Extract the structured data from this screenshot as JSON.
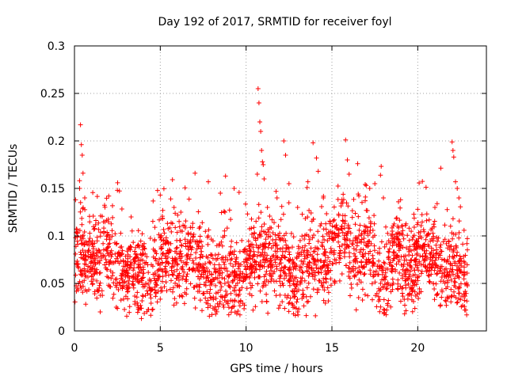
{
  "chart_data": {
    "type": "scatter",
    "title": "Day 192 of 2017, SRMTID for receiver foyl",
    "xlabel": "GPS time / hours",
    "ylabel": "SRMTID / TECUs",
    "xlim": [
      0,
      24
    ],
    "ylim": [
      0,
      0.3
    ],
    "xticks": [
      0,
      5,
      10,
      15,
      20
    ],
    "xtick_labels": [
      "0",
      "5",
      "10",
      "15",
      "20"
    ],
    "yticks": [
      0,
      0.05,
      0.1,
      0.15,
      0.2,
      0.25,
      0.3
    ],
    "ytick_labels": [
      "0",
      "0.05",
      "0.1",
      "0.15",
      "0.2",
      "0.25",
      "0.3"
    ],
    "grid": true,
    "marker": "+",
    "color": "#ff0000",
    "series": [
      {
        "name": "SRMTID",
        "x_start": 0.0,
        "x_end": 22.9,
        "n_points": 2400,
        "baseline_mean": 0.068,
        "baseline_spread": 0.022,
        "highlights": [
          {
            "x": 0.35,
            "y": 0.217
          },
          {
            "x": 0.4,
            "y": 0.196
          },
          {
            "x": 0.45,
            "y": 0.185
          },
          {
            "x": 0.5,
            "y": 0.166
          },
          {
            "x": 0.3,
            "y": 0.15
          },
          {
            "x": 0.6,
            "y": 0.14
          },
          {
            "x": 2.0,
            "y": 0.142
          },
          {
            "x": 2.5,
            "y": 0.148
          },
          {
            "x": 3.3,
            "y": 0.12
          },
          {
            "x": 5.0,
            "y": 0.143
          },
          {
            "x": 5.8,
            "y": 0.13
          },
          {
            "x": 6.2,
            "y": 0.125
          },
          {
            "x": 7.8,
            "y": 0.157
          },
          {
            "x": 8.5,
            "y": 0.145
          },
          {
            "x": 8.8,
            "y": 0.163
          },
          {
            "x": 9.3,
            "y": 0.15
          },
          {
            "x": 10.7,
            "y": 0.255
          },
          {
            "x": 10.75,
            "y": 0.24
          },
          {
            "x": 10.8,
            "y": 0.22
          },
          {
            "x": 10.85,
            "y": 0.21
          },
          {
            "x": 10.9,
            "y": 0.19
          },
          {
            "x": 10.95,
            "y": 0.178
          },
          {
            "x": 11.0,
            "y": 0.175
          },
          {
            "x": 10.65,
            "y": 0.165
          },
          {
            "x": 11.05,
            "y": 0.16
          },
          {
            "x": 11.8,
            "y": 0.14
          },
          {
            "x": 12.2,
            "y": 0.2
          },
          {
            "x": 12.3,
            "y": 0.185
          },
          {
            "x": 12.5,
            "y": 0.155
          },
          {
            "x": 13.0,
            "y": 0.13
          },
          {
            "x": 13.6,
            "y": 0.157
          },
          {
            "x": 13.9,
            "y": 0.198
          },
          {
            "x": 14.1,
            "y": 0.182
          },
          {
            "x": 14.2,
            "y": 0.168
          },
          {
            "x": 14.5,
            "y": 0.14
          },
          {
            "x": 15.8,
            "y": 0.201
          },
          {
            "x": 15.9,
            "y": 0.18
          },
          {
            "x": 16.0,
            "y": 0.165
          },
          {
            "x": 16.5,
            "y": 0.176
          },
          {
            "x": 17.2,
            "y": 0.15
          },
          {
            "x": 17.5,
            "y": 0.155
          },
          {
            "x": 18.0,
            "y": 0.14
          },
          {
            "x": 19.0,
            "y": 0.138
          },
          {
            "x": 20.0,
            "y": 0.128
          },
          {
            "x": 21.0,
            "y": 0.13
          },
          {
            "x": 22.0,
            "y": 0.199
          },
          {
            "x": 22.05,
            "y": 0.19
          },
          {
            "x": 22.1,
            "y": 0.183
          },
          {
            "x": 22.2,
            "y": 0.157
          },
          {
            "x": 22.3,
            "y": 0.15
          },
          {
            "x": 22.4,
            "y": 0.14
          },
          {
            "x": 3.9,
            "y": 0.013
          },
          {
            "x": 13.0,
            "y": 0.02
          },
          {
            "x": 22.8,
            "y": 0.022
          },
          {
            "x": 1.5,
            "y": 0.02
          },
          {
            "x": 8.7,
            "y": 0.025
          },
          {
            "x": 11.9,
            "y": 0.024
          }
        ]
      }
    ]
  }
}
